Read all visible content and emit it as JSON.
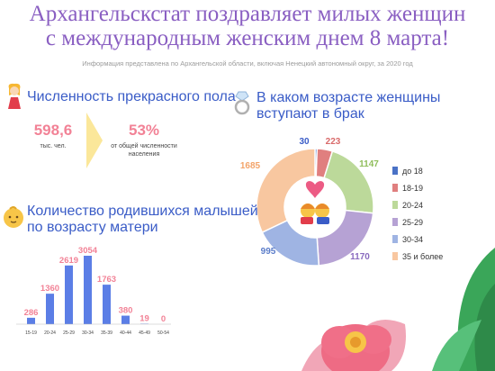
{
  "header": {
    "title_line1": "Архангельскстат поздравляет милых женщин",
    "title_line2": "с международным женским днем 8 марта!",
    "subtitle": "Информация представлена по Архангельской области, включая Ненецкий автономный округ, за 2020 год"
  },
  "population": {
    "title": "Численность прекрасного пола",
    "count_value": "598,6",
    "count_unit": "тыс. чел.",
    "share_value": "53%",
    "share_caption_line1": "от общей численности",
    "share_caption_line2": "населения"
  },
  "marriage": {
    "title_line1": "В каком возрасте женщины",
    "title_line2": "вступают в брак"
  },
  "births": {
    "title_line1": "Количество родившихся малышей",
    "title_line2": "по возрасту матери"
  },
  "colors": {
    "title": "#8a5fc2",
    "section": "#3a5cc7",
    "accent_pink": "#f28296",
    "bars": "#5b7ee6",
    "arrow": "#fbe79a"
  },
  "chart_data": [
    {
      "type": "pie",
      "variant": "donut",
      "title": "В каком возрасте женщины вступают в брак",
      "labels": [
        "до 18",
        "18-19",
        "20-24",
        "25-29",
        "30-34",
        "35 и более"
      ],
      "values": [
        30,
        223,
        1147,
        1170,
        995,
        1685
      ],
      "colors": [
        "#4a72c6",
        "#e07f7f",
        "#bcd99a",
        "#b6a2d4",
        "#9fb4e3",
        "#f8c7a0"
      ],
      "label_colors": [
        "#3a5cc7",
        "#d96a6a",
        "#8fbd5a",
        "#8a6bbf",
        "#5a7cc9",
        "#f3a46a"
      ],
      "legend_position": "right"
    },
    {
      "type": "bar",
      "title": "Количество родившихся малышей по возрасту матери",
      "categories": [
        "15-19",
        "20-24",
        "25-29",
        "30-34",
        "35-39",
        "40-44",
        "45-49",
        "50-54"
      ],
      "values": [
        286,
        1360,
        2619,
        3054,
        1763,
        380,
        19,
        0
      ],
      "ylim": [
        0,
        3054
      ],
      "grid": false
    }
  ]
}
